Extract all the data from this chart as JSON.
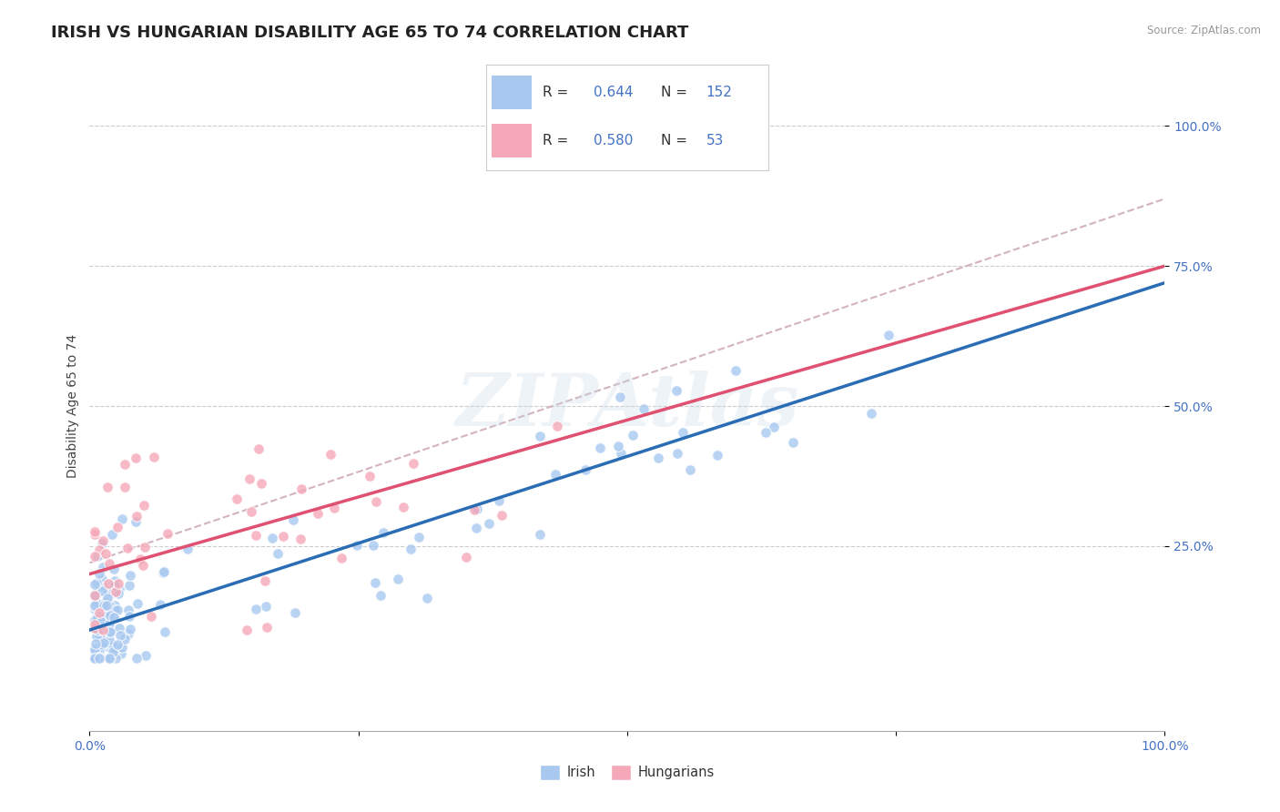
{
  "title": "IRISH VS HUNGARIAN DISABILITY AGE 65 TO 74 CORRELATION CHART",
  "source": "Source: ZipAtlas.com",
  "ylabel": "Disability Age 65 to 74",
  "xlim": [
    0.0,
    1.0
  ],
  "ylim": [
    -0.08,
    1.08
  ],
  "irish_R": 0.644,
  "irish_N": 152,
  "hungarian_R": 0.58,
  "hungarian_N": 53,
  "irish_color": "#a8c8f0",
  "hungarian_color": "#f5a8b8",
  "irish_line_color": "#2a6db5",
  "hungarian_line_color": "#e05070",
  "ref_line_color": "#c8a0b0",
  "watermark": "ZIPAtlas",
  "irish_slope": 0.62,
  "irish_intercept": 0.1,
  "hungarian_slope": 0.55,
  "hungarian_intercept": 0.2,
  "ref_slope": 0.65,
  "ref_intercept": 0.22,
  "title_fontsize": 13,
  "axis_fontsize": 10,
  "tick_fontsize": 10,
  "legend_fontsize": 11
}
